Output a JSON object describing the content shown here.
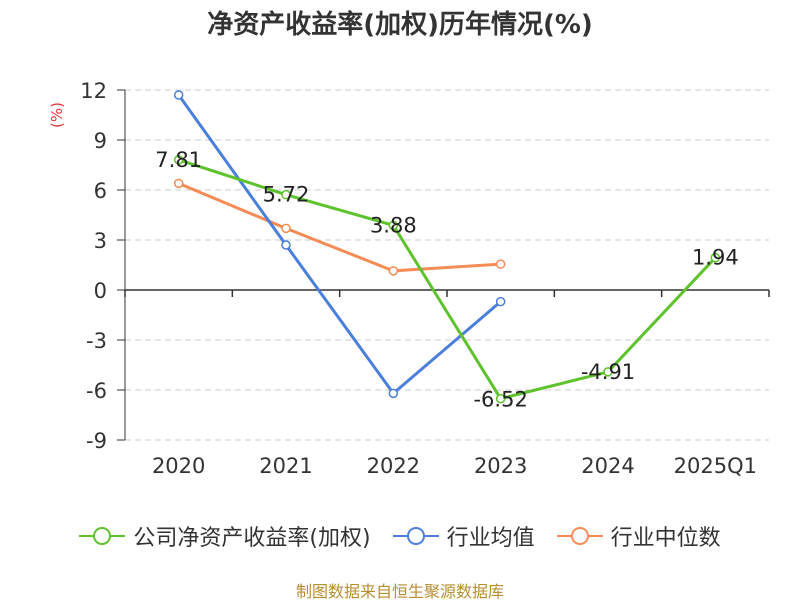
{
  "chart_data": {
    "type": "line",
    "title": "净资产收益率(加权)历年情况(%)",
    "ylabel": "(%)",
    "xlabel": "",
    "categories": [
      "2020",
      "2021",
      "2022",
      "2023",
      "2024",
      "2025Q1"
    ],
    "ylim": [
      -9,
      12
    ],
    "yticks": [
      12,
      9,
      6,
      3,
      0,
      -3,
      -6,
      -9
    ],
    "grid": true,
    "legend_position": "bottom",
    "series": [
      {
        "name": "公司净资产收益率(加权)",
        "color": "#5ec22c",
        "values": [
          7.81,
          5.72,
          3.88,
          -6.52,
          -4.91,
          1.94
        ],
        "labels": [
          "7.81",
          "5.72",
          "3.88",
          "-6.52",
          "-4.91",
          "1.94"
        ]
      },
      {
        "name": "行业均值",
        "color": "#4a7fdc",
        "values": [
          11.7,
          2.7,
          -6.2,
          -0.7,
          null,
          null
        ]
      },
      {
        "name": "行业中位数",
        "color": "#f58b55",
        "values": [
          6.4,
          3.7,
          1.15,
          1.55,
          null,
          null
        ]
      }
    ]
  },
  "source": "制图数据来自恒生聚源数据库"
}
